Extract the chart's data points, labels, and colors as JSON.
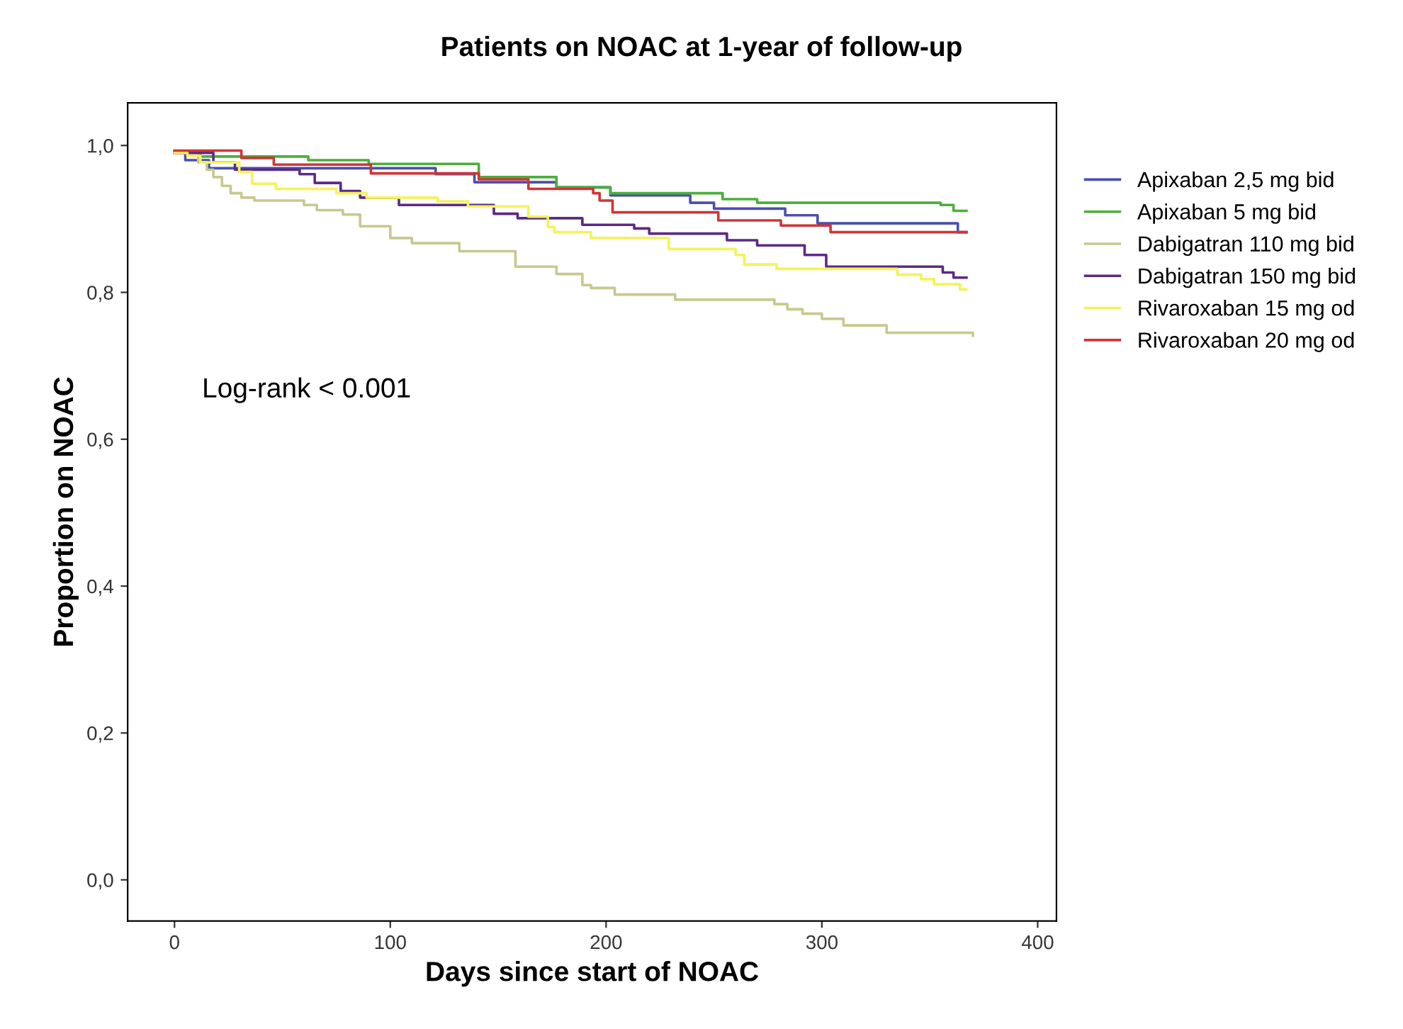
{
  "chart_data": {
    "type": "step",
    "title": "Patients on NOAC at 1-year of follow-up",
    "xlabel": "Days since start of NOAC",
    "ylabel": "Proportion on NOAC",
    "annotations": [
      "Log-rank < 0.001"
    ],
    "xlim": [
      -21.7,
      408.7
    ],
    "ylim": [
      -0.056,
      1.058
    ],
    "xticks": [
      0,
      100,
      200,
      300,
      400
    ],
    "yticks": [
      {
        "value": 0.0,
        "label": "0,0"
      },
      {
        "value": 0.2,
        "label": "0,2"
      },
      {
        "value": 0.4,
        "label": "0,4"
      },
      {
        "value": 0.6,
        "label": "0,6"
      },
      {
        "value": 0.8,
        "label": "0,8"
      },
      {
        "value": 1.0,
        "label": "1,0"
      }
    ],
    "grid": false,
    "legend": "right",
    "marker": "none",
    "line_style": "solid",
    "series": [
      {
        "name": "Apixaban 2,5 mg bid",
        "color": "#4b4fb0",
        "x": [
          0,
          5,
          16,
          121,
          139,
          177,
          202,
          239,
          250,
          283,
          298,
          363,
          367
        ],
        "values": [
          0.99,
          0.98,
          0.969,
          0.961,
          0.95,
          0.943,
          0.932,
          0.922,
          0.914,
          0.905,
          0.894,
          0.882,
          0.882
        ]
      },
      {
        "name": "Apixaban 5 mg bid",
        "color": "#4caf3a",
        "x": [
          0,
          12,
          62,
          90,
          141,
          177,
          202,
          254,
          270,
          355,
          361,
          367
        ],
        "values": [
          0.992,
          0.985,
          0.98,
          0.975,
          0.957,
          0.943,
          0.935,
          0.927,
          0.922,
          0.919,
          0.911,
          0.911
        ]
      },
      {
        "name": "Dabigatran 110 mg bid",
        "color": "#c8c88e",
        "x": [
          0,
          11,
          15,
          18,
          22,
          26,
          31,
          37,
          60,
          66,
          78,
          86,
          100,
          110,
          132,
          158,
          177,
          189,
          193,
          204,
          232,
          278,
          284,
          291,
          300,
          310,
          330,
          370
        ],
        "values": [
          0.99,
          0.977,
          0.967,
          0.957,
          0.945,
          0.935,
          0.929,
          0.925,
          0.919,
          0.912,
          0.906,
          0.89,
          0.874,
          0.867,
          0.856,
          0.835,
          0.825,
          0.81,
          0.806,
          0.797,
          0.79,
          0.784,
          0.777,
          0.771,
          0.764,
          0.755,
          0.745,
          0.741
        ]
      },
      {
        "name": "Dabigatran 150 mg bid",
        "color": "#5b2a86",
        "x": [
          0,
          18,
          28,
          58,
          65,
          77,
          86,
          104,
          148,
          159,
          189,
          213,
          220,
          256,
          270,
          292,
          302,
          356,
          361,
          367
        ],
        "values": [
          0.99,
          0.977,
          0.967,
          0.961,
          0.949,
          0.938,
          0.929,
          0.919,
          0.907,
          0.901,
          0.892,
          0.887,
          0.88,
          0.871,
          0.864,
          0.851,
          0.835,
          0.827,
          0.82,
          0.82
        ]
      },
      {
        "name": "Rivaroxaban 15 mg od",
        "color": "#f3f35a",
        "x": [
          0,
          6,
          12,
          30,
          36,
          47,
          75,
          89,
          122,
          136,
          164,
          173,
          176,
          193,
          229,
          260,
          264,
          279,
          335,
          346,
          352,
          364,
          367
        ],
        "values": [
          0.99,
          0.986,
          0.977,
          0.964,
          0.948,
          0.941,
          0.935,
          0.929,
          0.924,
          0.917,
          0.903,
          0.889,
          0.882,
          0.874,
          0.859,
          0.851,
          0.838,
          0.832,
          0.824,
          0.818,
          0.811,
          0.804,
          0.804
        ]
      },
      {
        "name": "Rivaroxaban 20 mg od",
        "color": "#d03535",
        "x": [
          0,
          31,
          46,
          91,
          141,
          164,
          194,
          197,
          203,
          252,
          281,
          304,
          367
        ],
        "values": [
          0.993,
          0.983,
          0.974,
          0.962,
          0.954,
          0.941,
          0.935,
          0.925,
          0.909,
          0.898,
          0.891,
          0.882,
          0.882
        ]
      }
    ]
  }
}
